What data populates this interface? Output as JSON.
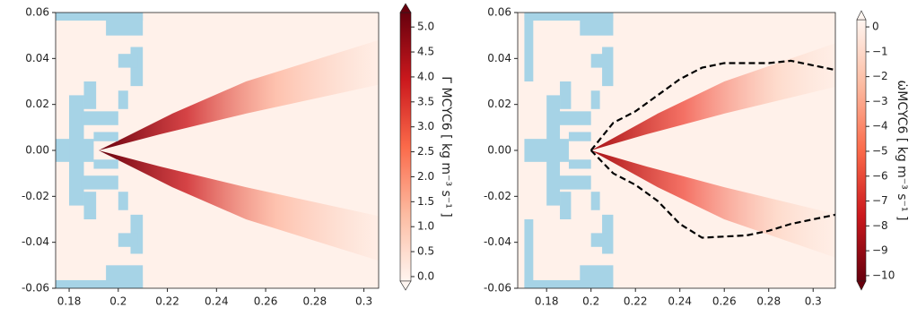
{
  "chart_data": [
    {
      "type": "contour",
      "colormap": "Reds",
      "xlim": [
        0.1745,
        0.306
      ],
      "xticks": [
        0.18,
        0.2,
        0.22,
        0.24,
        0.26,
        0.28,
        0.3
      ],
      "ylim": [
        -0.06,
        0.06
      ],
      "yticks": [
        -0.06,
        -0.04,
        -0.02,
        {
          "value": 0,
          "label": "0.00"
        },
        0.02,
        0.04,
        0.06
      ],
      "colorbar_label": "Γ MCYC6 [ kg m⁻³ s⁻¹ ]",
      "clim": [
        -0.09,
        5.29
      ],
      "cticks": [
        {
          "value": 0,
          "label": "0.0"
        },
        0.5,
        {
          "value": 1,
          "label": "1.0"
        },
        1.5,
        {
          "value": 2,
          "label": "2.0"
        },
        2.5,
        {
          "value": 3,
          "label": "3.0"
        },
        3.5,
        {
          "value": 4,
          "label": "4.0"
        },
        4.5,
        {
          "value": 5,
          "label": "5.0"
        }
      ],
      "series": []
    },
    {
      "type": "contour",
      "colormap": "Reds_r",
      "xlim": [
        0.167,
        0.31
      ],
      "xticks": [
        0.18,
        0.2,
        0.22,
        0.24,
        0.26,
        0.28,
        0.3
      ],
      "ylim": [
        -0.06,
        0.06
      ],
      "yticks": [
        -0.06,
        -0.04,
        -0.02,
        {
          "value": 0,
          "label": "0.00"
        },
        0.02,
        0.04,
        0.06
      ],
      "colorbar_label": "ω̇MCYC6 [ kg m⁻³ s⁻¹ ]",
      "clim": [
        -10.22,
        0.29
      ],
      "cticks": [
        0,
        {
          "value": -1,
          "label": "−1"
        },
        {
          "value": -2,
          "label": "−2"
        },
        {
          "value": -3,
          "label": "−3"
        },
        {
          "value": -4,
          "label": "−4"
        },
        {
          "value": -5,
          "label": "−5"
        },
        {
          "value": -6,
          "label": "−6"
        },
        {
          "value": -7,
          "label": "−7"
        },
        {
          "value": -8,
          "label": "−8"
        },
        {
          "value": -9,
          "label": "−9"
        },
        {
          "value": -10,
          "label": "−10"
        }
      ],
      "series": [
        {
          "color": "#000000",
          "dashed": true,
          "x": [
            0.2,
            0.21,
            0.22,
            0.23,
            0.24,
            0.25,
            0.26,
            0.28,
            0.29,
            0.31
          ],
          "y": [
            0,
            0.012,
            0.017,
            0.024,
            0.031,
            0.036,
            0.038,
            0.038,
            0.039,
            0.035
          ]
        },
        {
          "color": "#000000",
          "dashed": true,
          "x": [
            0.2,
            0.21,
            0.22,
            0.23,
            0.24,
            0.25,
            0.27,
            0.28,
            0.29,
            0.31
          ],
          "y": [
            0,
            -0.01,
            -0.015,
            -0.022,
            -0.032,
            -0.038,
            -0.037,
            -0.035,
            -0.032,
            -0.028
          ]
        }
      ]
    }
  ]
}
